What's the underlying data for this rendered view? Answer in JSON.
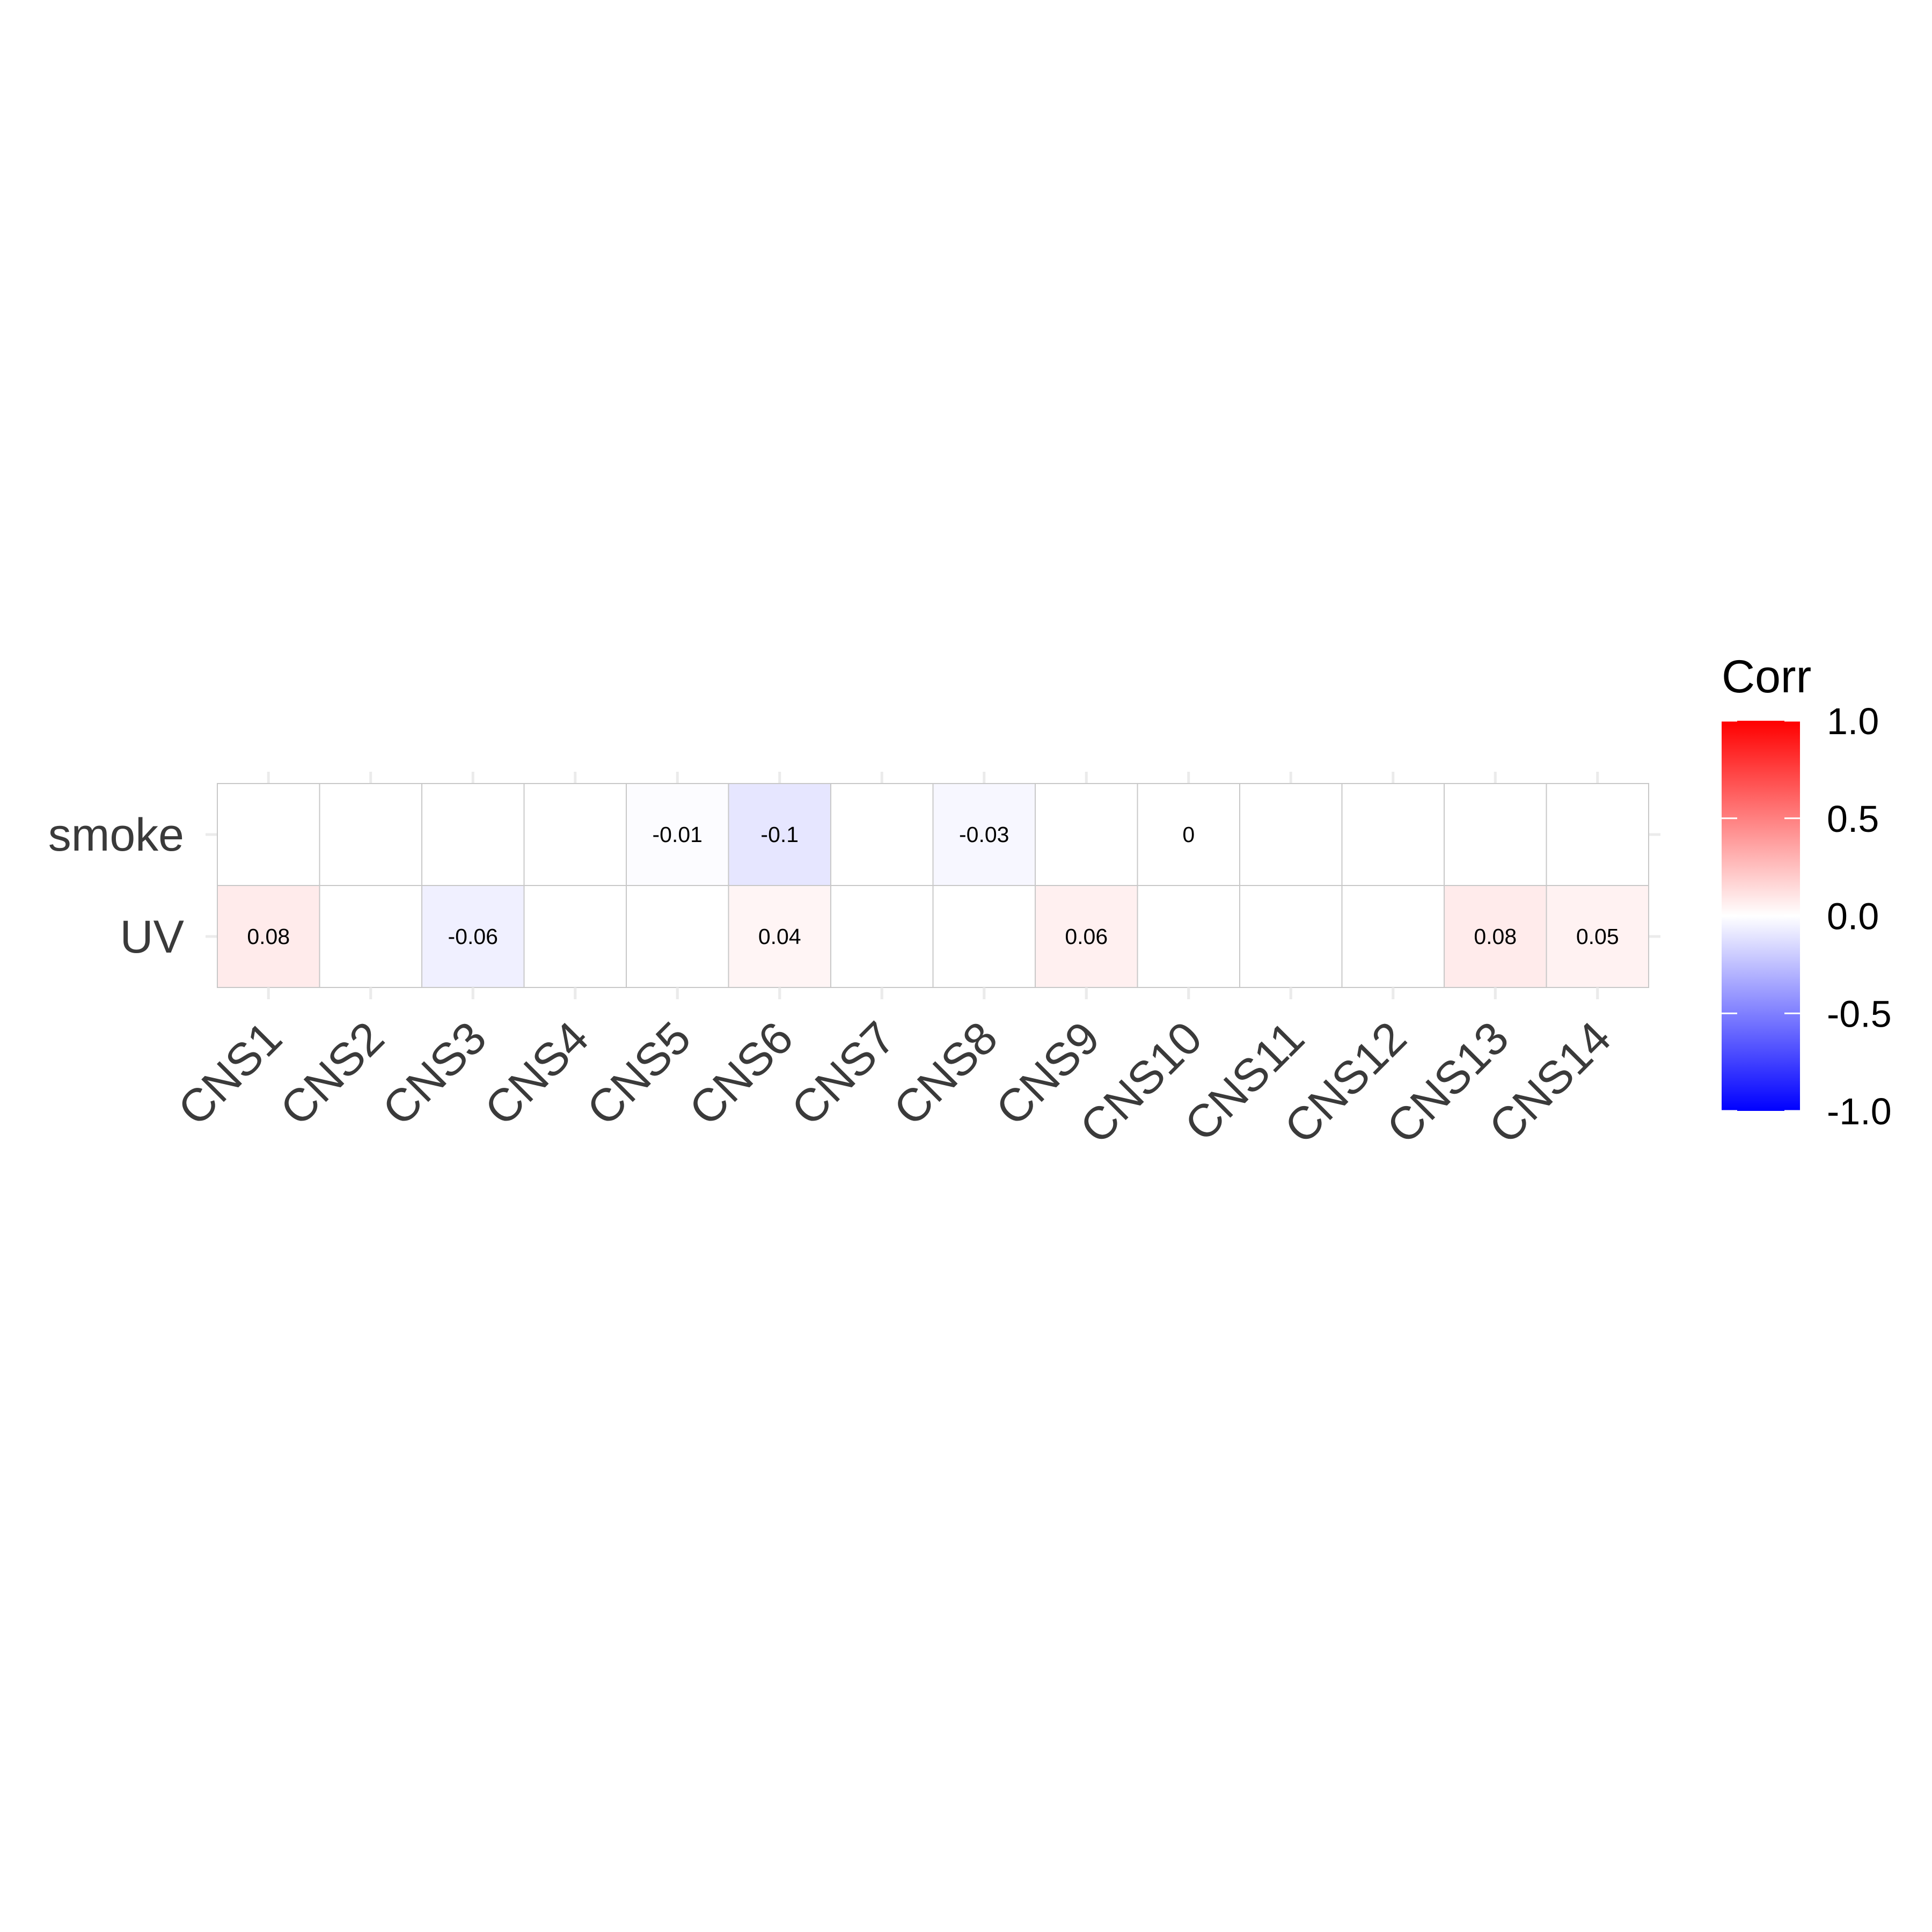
{
  "chart_data": {
    "type": "heatmap",
    "title": "",
    "xlabel": "",
    "ylabel": "",
    "x_categories": [
      "CNS1",
      "CNS2",
      "CNS3",
      "CNS4",
      "CNS5",
      "CNS6",
      "CNS7",
      "CNS8",
      "CNS9",
      "CNS10",
      "CNS11",
      "CNS12",
      "CNS13",
      "CNS14"
    ],
    "y_categories": [
      "smoke",
      "UV"
    ],
    "values": [
      [
        null,
        null,
        null,
        null,
        -0.01,
        -0.1,
        null,
        -0.03,
        null,
        0,
        null,
        null,
        null,
        null
      ],
      [
        0.08,
        null,
        -0.06,
        null,
        null,
        0.04,
        null,
        null,
        0.06,
        null,
        null,
        null,
        0.08,
        0.05
      ]
    ],
    "cell_labels": [
      [
        "",
        "",
        "",
        "",
        "-0.01",
        "-0.1",
        "",
        "-0.03",
        "",
        "0",
        "",
        "",
        "",
        ""
      ],
      [
        "0.08",
        "",
        "-0.06",
        "",
        "",
        "0.04",
        "",
        "",
        "0.06",
        "",
        "",
        "",
        "0.08",
        "0.05"
      ]
    ],
    "color_scale": {
      "low": "#0000ff",
      "mid": "#ffffff",
      "high": "#ff0000",
      "limits": [
        -1,
        1
      ]
    },
    "legend": {
      "title": "Corr",
      "position": "right",
      "breaks": [
        1.0,
        0.5,
        0.0,
        -0.5,
        -1.0
      ],
      "break_labels": [
        "1.0",
        "0.5",
        "0.0",
        "-0.5",
        "-1.0"
      ]
    },
    "grid": true
  }
}
